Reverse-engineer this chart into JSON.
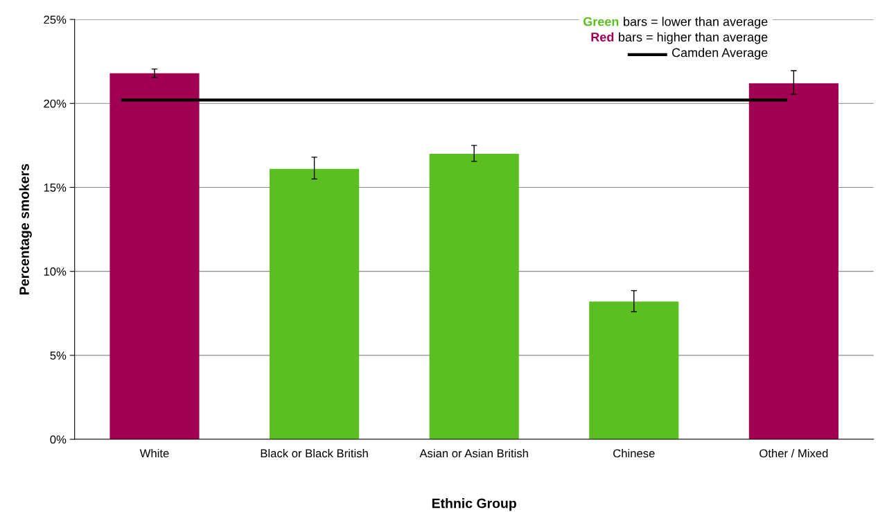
{
  "chart_data": {
    "type": "bar",
    "xlabel": "Ethnic Group",
    "ylabel": "Percentage smokers",
    "categories": [
      "White",
      "Black or Black British",
      "Asian or Asian British",
      "Chinese",
      "Other / Mixed"
    ],
    "values": [
      21.8,
      16.1,
      17.0,
      8.2,
      21.2
    ],
    "colors": [
      "#a10052",
      "#5bbf21",
      "#5bbf21",
      "#5bbf21",
      "#a10052"
    ],
    "errors": [
      [
        21.55,
        22.05
      ],
      [
        15.5,
        16.8
      ],
      [
        16.55,
        17.5
      ],
      [
        7.6,
        8.85
      ],
      [
        20.55,
        21.95
      ]
    ],
    "ylim": [
      0,
      25
    ],
    "yticks": [
      {
        "value": 0,
        "label": "0%"
      },
      {
        "value": 5,
        "label": "5%"
      },
      {
        "value": 10,
        "label": "10%"
      },
      {
        "value": 15,
        "label": "15%"
      },
      {
        "value": 20,
        "label": "20%"
      },
      {
        "value": 25,
        "label": "25%"
      }
    ],
    "grid": "y",
    "ref_lines": [
      {
        "axis": "y",
        "value": 20.2,
        "label": "Camden Average",
        "color": "#000000"
      }
    ],
    "annotations": [
      "Green bars = lower than average",
      "Red bars = higher than average"
    ],
    "legend": "top right"
  }
}
